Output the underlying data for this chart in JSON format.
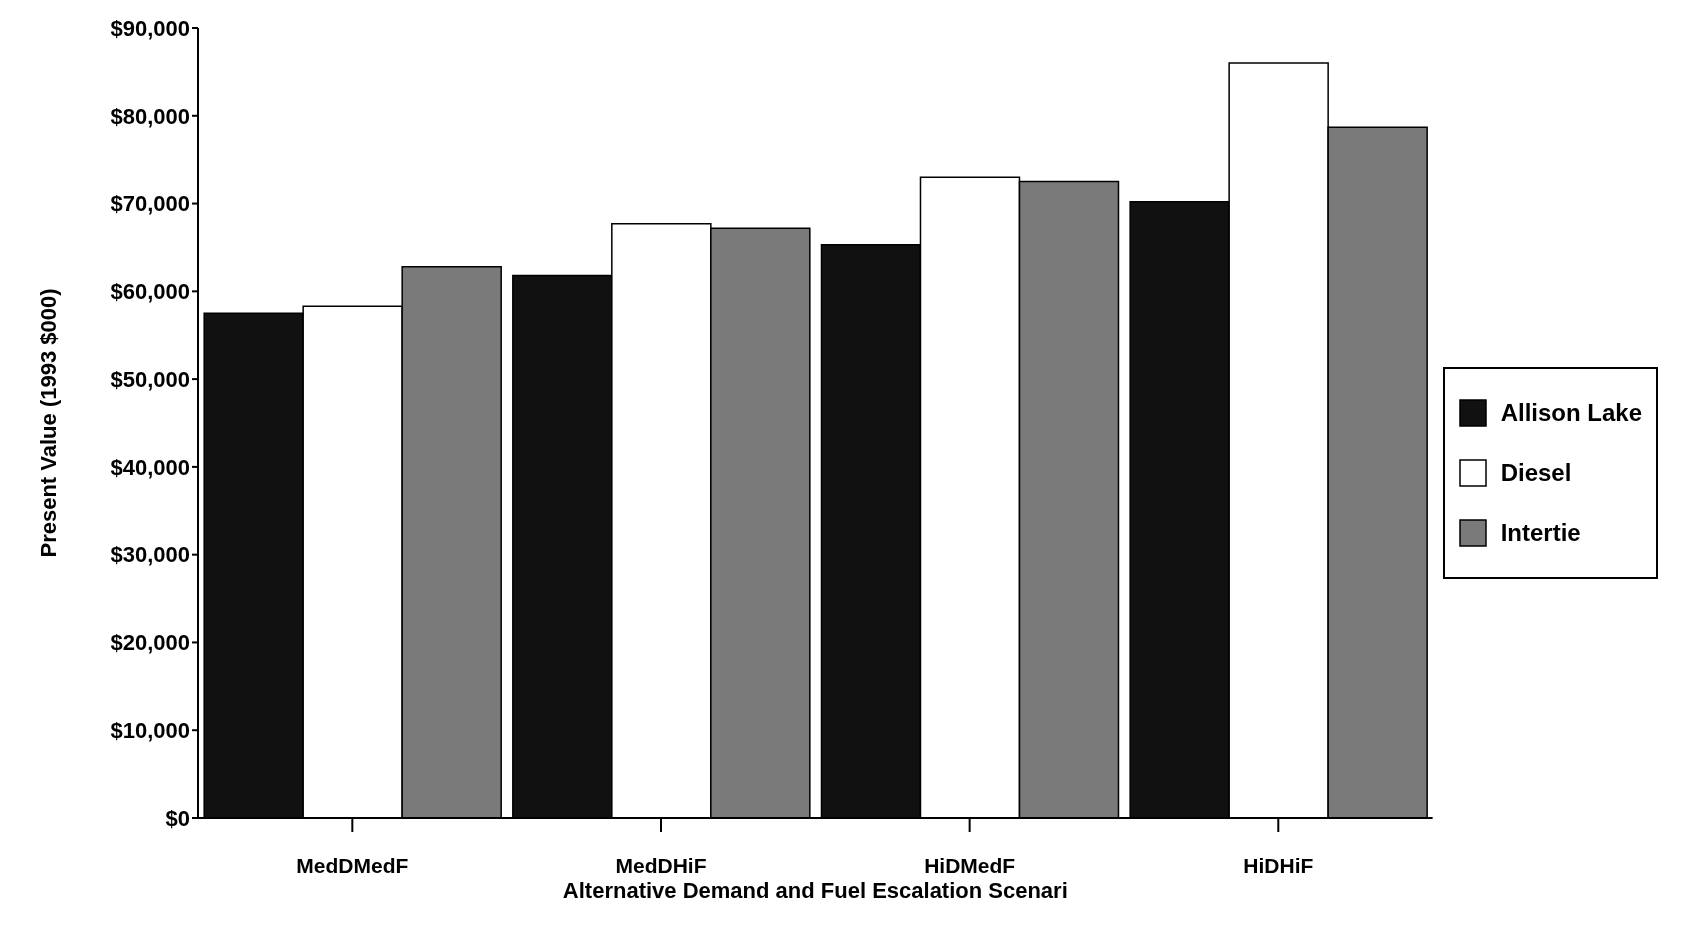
{
  "chart_data": {
    "type": "bar",
    "xlabel": "Alternative Demand and Fuel Escalation Scenari",
    "ylabel": "Present Value (1993 $000)",
    "categories": [
      "MedDMedF",
      "MedDHiF",
      "HiDMedF",
      "HiDHiF"
    ],
    "series": [
      {
        "name": "Allison Lake",
        "color": "#111111",
        "values": [
          57500,
          61800,
          65300,
          70200
        ]
      },
      {
        "name": "Diesel",
        "color": "#ffffff",
        "values": [
          58300,
          67700,
          73000,
          86000
        ]
      },
      {
        "name": "Intertie",
        "color": "#7a7a7a",
        "values": [
          62800,
          67200,
          72500,
          78700
        ]
      }
    ],
    "ylim": [
      0,
      90000
    ],
    "yticks": [
      {
        "value": 0,
        "label": "$0"
      },
      {
        "value": 10000,
        "label": "$10,000"
      },
      {
        "value": 20000,
        "label": "$20,000"
      },
      {
        "value": 30000,
        "label": "$30,000"
      },
      {
        "value": 40000,
        "label": "$40,000"
      },
      {
        "value": 50000,
        "label": "$50,000"
      },
      {
        "value": 60000,
        "label": "$60,000"
      },
      {
        "value": 70000,
        "label": "$70,000"
      },
      {
        "value": 80000,
        "label": "$80,000"
      },
      {
        "value": 90000,
        "label": "$90,000"
      }
    ],
    "grid": false,
    "legend": "right"
  }
}
